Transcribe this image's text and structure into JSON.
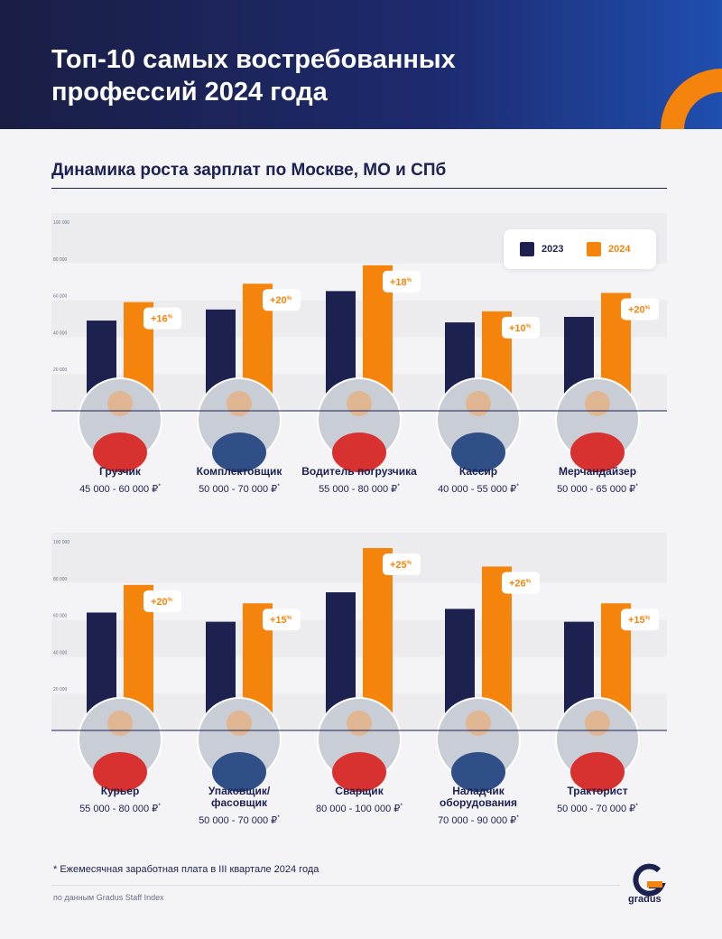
{
  "header": {
    "title": "Топ-10 самых востребованных профессий 2024 года"
  },
  "subtitle": "Динамика роста зарплат по Москве, МО и СПб",
  "legend": {
    "items": [
      {
        "label": "2023",
        "color": "#1c2150"
      },
      {
        "label": "2024",
        "color": "#f5840c"
      }
    ]
  },
  "colors": {
    "navy": "#1c2150",
    "orange": "#f5840c",
    "accent_ring": "#f5840c"
  },
  "chart_data": [
    {
      "type": "bar",
      "ylim": [
        0,
        100000
      ],
      "yticks": [
        20000,
        40000,
        60000,
        80000,
        100000
      ],
      "ytick_labels": [
        "20 000",
        "40 000",
        "60 000",
        "80 000",
        "100 000"
      ],
      "categories": [
        "Грузчик",
        "Комплектовщик",
        "Водитель погрузчика",
        "Кассир",
        "Мерчандайзер"
      ],
      "series": [
        {
          "name": "2023",
          "values": [
            49000,
            55000,
            65000,
            48000,
            51000
          ]
        },
        {
          "name": "2024",
          "values": [
            59000,
            69000,
            79000,
            54000,
            64000
          ]
        }
      ],
      "badges": [
        "+16%",
        "+20%",
        "+18%",
        "+10%",
        "+20%"
      ],
      "salaries": [
        "45 000 - 60 000 ₽",
        "50 000 - 70 000 ₽",
        "55 000 - 80 000 ₽",
        "40 000 - 55 000 ₽",
        "50 000 - 65 000 ₽"
      ],
      "legend": "top-right",
      "grid": true
    },
    {
      "type": "bar",
      "ylim": [
        0,
        100000
      ],
      "yticks": [
        20000,
        40000,
        60000,
        80000,
        100000
      ],
      "ytick_labels": [
        "20 000",
        "40 000",
        "60 000",
        "80 000",
        "100 000"
      ],
      "categories": [
        "Курьер",
        "Упаковщик/ фасовщик",
        "Сварщик",
        "Наладчик оборудования",
        "Тракторист"
      ],
      "series": [
        {
          "name": "2023",
          "values": [
            64000,
            59000,
            75000,
            66000,
            59000
          ]
        },
        {
          "name": "2024",
          "values": [
            79000,
            69000,
            99000,
            89000,
            69000
          ]
        }
      ],
      "badges": [
        "+20%",
        "+15%",
        "+25%",
        "+26%",
        "+15%"
      ],
      "salaries": [
        "55 000 - 80 000 ₽",
        "50 000 - 70 000 ₽",
        "80 000 - 100 000 ₽",
        "70 000 - 90 000 ₽",
        "50 000 - 70 000 ₽"
      ],
      "grid": true
    }
  ],
  "footnote": "Ежемесячная заработная плата в III квартале 2024 года",
  "footnote_mark": "*",
  "source": "по данным Gradus Staff Index",
  "logo": {
    "text": "gradus",
    "letter": "G"
  }
}
